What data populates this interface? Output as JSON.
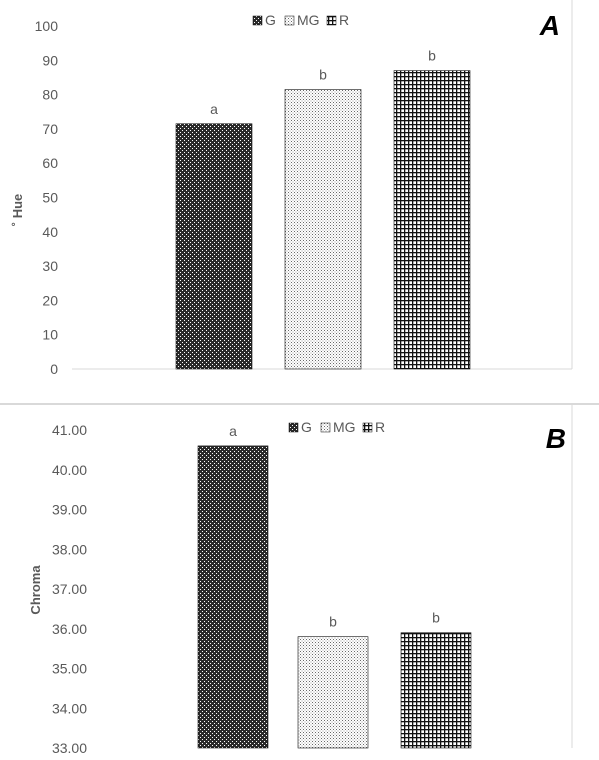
{
  "chart_data": [
    {
      "panel_label": "A",
      "type": "bar",
      "categories": [
        "G",
        "MG",
        "R"
      ],
      "values": [
        71.5,
        81.5,
        87
      ],
      "bar_labels": [
        "a",
        "b",
        "b"
      ],
      "ylabel": "˚ Hue",
      "ylim": [
        0,
        100
      ],
      "yticks": [
        "0",
        "10",
        "20",
        "30",
        "40",
        "50",
        "60",
        "70",
        "80",
        "90",
        "100"
      ],
      "legend": [
        "G",
        "MG",
        "R"
      ],
      "legend_position": "top-center",
      "grid": false
    },
    {
      "panel_label": "B",
      "type": "bar",
      "categories": [
        "G",
        "MG",
        "R"
      ],
      "values": [
        40.6,
        35.8,
        35.9
      ],
      "bar_labels": [
        "a",
        "b",
        "b"
      ],
      "ylabel": "Chroma",
      "ylim": [
        33,
        41
      ],
      "yticks": [
        "33.00",
        "34.00",
        "35.00",
        "36.00",
        "37.00",
        "38.00",
        "39.00",
        "40.00",
        "41.00"
      ],
      "legend": [
        "G",
        "MG",
        "R"
      ],
      "legend_position": "top-center",
      "grid": false
    }
  ],
  "colors": {
    "text": "#595959",
    "bar_ink": "#111111",
    "axis": "#d9d9d9"
  }
}
